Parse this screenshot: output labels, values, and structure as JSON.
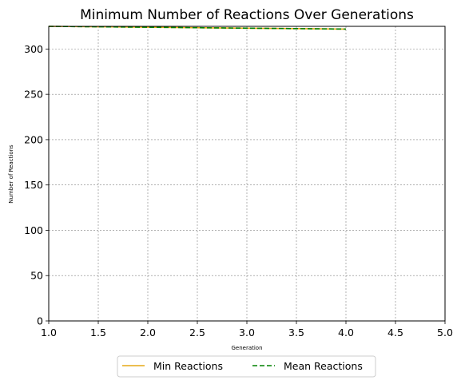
{
  "chart_data": {
    "type": "line",
    "title": "Minimum Number of Reactions Over Generations",
    "xlabel": "Generation",
    "ylabel": "Number of Reactions",
    "xlim": [
      1.0,
      5.0
    ],
    "ylim": [
      0,
      325
    ],
    "xticks": [
      "1.0",
      "1.5",
      "2.0",
      "2.5",
      "3.0",
      "3.5",
      "4.0",
      "4.5",
      "5.0"
    ],
    "yticks": [
      "0",
      "50",
      "100",
      "150",
      "200",
      "250",
      "300"
    ],
    "grid": true,
    "legend_position": "bottom-center",
    "series": [
      {
        "name": "Min Reactions",
        "color": "#e6a817",
        "style": "solid",
        "x": [
          1,
          2,
          3,
          4
        ],
        "y": [
          325,
          324,
          323,
          322
        ]
      },
      {
        "name": "Mean Reactions",
        "color": "#008000",
        "style": "dashed",
        "x": [
          1,
          2,
          3,
          4
        ],
        "y": [
          325,
          324,
          323,
          322
        ]
      }
    ]
  }
}
